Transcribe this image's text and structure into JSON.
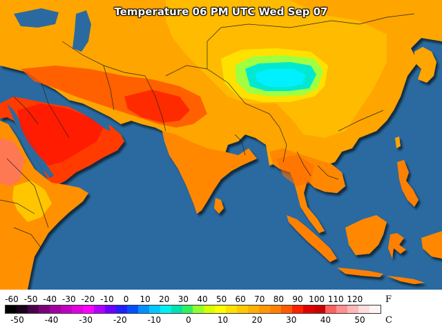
{
  "title": "Temperature 06 PM UTC Wed Sep 07",
  "legend": {
    "unit_f": "F",
    "unit_c": "C",
    "f_ticks": [
      "-60",
      "-50",
      "-40",
      "-30",
      "-20",
      "-10",
      "0",
      "10",
      "20",
      "30",
      "40",
      "50",
      "60",
      "70",
      "80",
      "90",
      "100",
      "110",
      "120"
    ],
    "c_ticks": [
      "-50",
      "-40",
      "-30",
      "-20",
      "-10",
      "0",
      "10",
      "20",
      "30",
      "40",
      "50"
    ],
    "colors": [
      "#000000",
      "#1a001a",
      "#4a004a",
      "#7a007a",
      "#a000a0",
      "#c000c0",
      "#e000e0",
      "#ff00ff",
      "#b000ff",
      "#6a00ff",
      "#2020ff",
      "#0050ff",
      "#0090ff",
      "#00c8ff",
      "#00f0f0",
      "#00e0b0",
      "#30f060",
      "#90ff30",
      "#d8ff00",
      "#ffff00",
      "#ffe000",
      "#ffc800",
      "#ffb000",
      "#ff9800",
      "#ff8000",
      "#ff5a00",
      "#ff2000",
      "#e00000",
      "#c80000",
      "#ff6060",
      "#ff9090",
      "#ffb8b8",
      "#ffdede",
      "#fff4f4"
    ]
  },
  "palette": {
    "ocean": "#2a6aa0",
    "hot": "#ff8800",
    "hotter": "#ff5500",
    "hottest": "#ff2200",
    "warm": "#ffa800",
    "mild": "#ffc800",
    "cool": "#00e0e0"
  }
}
